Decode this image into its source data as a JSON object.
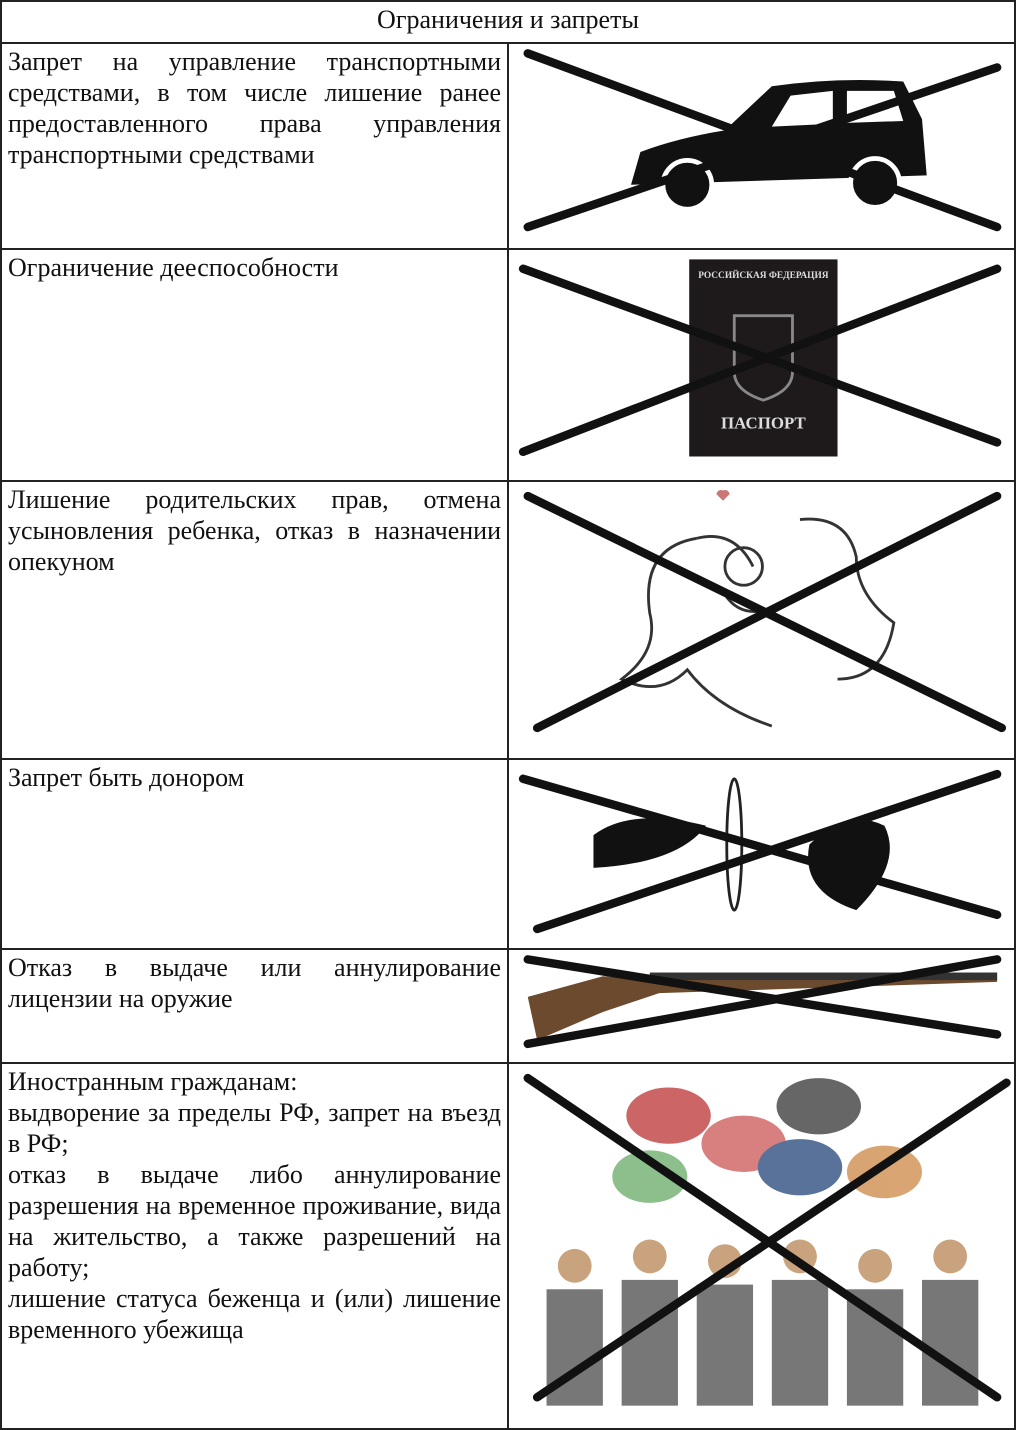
{
  "table": {
    "header": "Ограничения и запреты",
    "rows": [
      {
        "text": [
          "Запрет на управление транспортными средствами, в том числе лишение ранее предоставленного права управления транспортными средствами"
        ]
      },
      {
        "text": [
          "Ограничение дееспособности"
        ],
        "image_text": [
          "РОССИЙСКАЯ ФЕДЕРАЦИЯ",
          "ПАСПОРТ"
        ]
      },
      {
        "text": [
          "Лишение родительских прав, отмена усыновления ребенка, отказ в назначении опекуном"
        ]
      },
      {
        "text": [
          "Запрет быть донором"
        ]
      },
      {
        "text": [
          "Отказ в выдаче или аннулирование лицензии на оружие"
        ]
      },
      {
        "text": [
          "Иностранным гражданам:",
          "выдворение за пределы РФ, запрет на въезд в РФ;",
          "отказ в выдаче либо аннулирование разрешения на временное проживание, вида на жительство, а также разрешений на работу;",
          "лишение статуса беженца и (или) лишение временного убежища"
        ]
      }
    ]
  }
}
